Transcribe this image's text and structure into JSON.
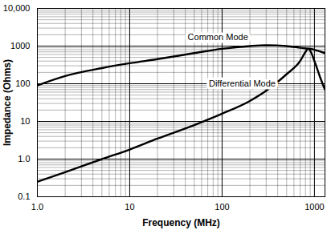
{
  "chart_data": {
    "type": "line",
    "log": true,
    "grid": true,
    "xlabel": "Frequency (MHz)",
    "ylabel": "Impedance (Ohms)",
    "xlim": [
      1,
      1300
    ],
    "ylim": [
      0.1,
      10000
    ],
    "xticks": [
      {
        "value": 1,
        "label": "1.0"
      },
      10,
      100,
      1000
    ],
    "yticks": [
      0.1,
      {
        "value": 1,
        "label": "1.0"
      },
      10,
      100,
      1000,
      {
        "value": 10000,
        "label": "10,000"
      }
    ],
    "series": [
      {
        "name": "Common Mode",
        "color": "#000000",
        "x": [
          1,
          2,
          5,
          10,
          20,
          50,
          100,
          200,
          300,
          500,
          700,
          1000,
          1300
        ],
        "values": [
          90,
          160,
          260,
          350,
          450,
          650,
          850,
          1000,
          1050,
          1000,
          900,
          800,
          650
        ],
        "label_position": {
          "x": 90,
          "y": 1700
        }
      },
      {
        "name": "Differential Mode",
        "color": "#000000",
        "x": [
          1,
          2,
          5,
          10,
          20,
          50,
          100,
          200,
          300,
          500,
          700,
          800,
          850,
          900,
          1000,
          1150,
          1300
        ],
        "values": [
          0.25,
          0.45,
          1.0,
          1.8,
          3.5,
          8,
          16,
          35,
          65,
          180,
          400,
          700,
          850,
          750,
          400,
          150,
          70
        ],
        "label_position": {
          "x": 165,
          "y": 100
        }
      }
    ]
  }
}
